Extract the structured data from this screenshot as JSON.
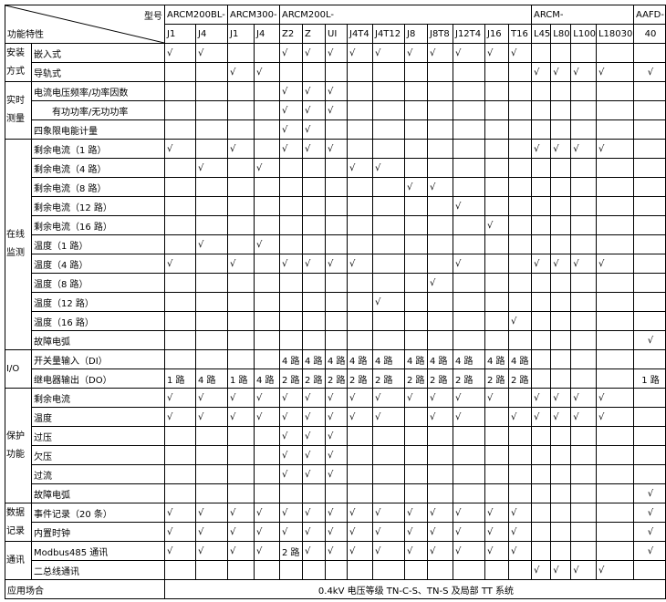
{
  "header": {
    "corner_top": "型号",
    "corner_bottom": "功能特性",
    "series": [
      {
        "name": "ARCM200BL-",
        "span": 2
      },
      {
        "name": "ARCM300-",
        "span": 2
      },
      {
        "name": "ARCM200L-",
        "span": 10
      },
      {
        "name": "ARCM-",
        "span": 4
      },
      {
        "name": "AAFD-",
        "span": 1
      }
    ],
    "models": [
      "J1",
      "J4",
      "J1",
      "J4",
      "Z2",
      "Z",
      "UI",
      "J4T4",
      "J4T12",
      "J8",
      "J8T8",
      "J12T4",
      "J16",
      "T16",
      "L45",
      "L80",
      "L100",
      "L18030",
      "40"
    ]
  },
  "groups": [
    {
      "label": "安装方式",
      "rows": [
        {
          "feature": "嵌入式",
          "cells": [
            "√",
            "√",
            "",
            "",
            "√",
            "√",
            "√",
            "√",
            "√",
            "√",
            "√",
            "√",
            "√",
            "√",
            "",
            "",
            "",
            "",
            ""
          ]
        },
        {
          "feature": "导轨式",
          "cells": [
            "",
            "",
            "√",
            "√",
            "",
            "",
            "",
            "",
            "",
            "",
            "",
            "",
            "",
            "",
            "√",
            "√",
            "√",
            "√",
            "√"
          ]
        }
      ]
    },
    {
      "label": "实时测量",
      "rows": [
        {
          "feature": "电流电压频率/功率因数",
          "cells": [
            "",
            "",
            "",
            "",
            "√",
            "√",
            "√",
            "",
            "",
            "",
            "",
            "",
            "",
            "",
            "",
            "",
            "",
            "",
            ""
          ]
        },
        {
          "feature": "有功功率/无功功率",
          "indent": true,
          "cells": [
            "",
            "",
            "",
            "",
            "√",
            "√",
            "√",
            "",
            "",
            "",
            "",
            "",
            "",
            "",
            "",
            "",
            "",
            "",
            ""
          ]
        },
        {
          "feature": "四象限电能计量",
          "cells": [
            "",
            "",
            "",
            "",
            "√",
            "√",
            "",
            "",
            "",
            "",
            "",
            "",
            "",
            "",
            "",
            "",
            "",
            "",
            ""
          ]
        }
      ]
    },
    {
      "label": "在线监测",
      "rows": [
        {
          "feature": "剩余电流（1 路）",
          "cells": [
            "√",
            "",
            "√",
            "",
            "√",
            "√",
            "√",
            "",
            "",
            "",
            "",
            "",
            "",
            "",
            "√",
            "√",
            "√",
            "√",
            ""
          ]
        },
        {
          "feature": "剩余电流（4 路）",
          "cells": [
            "",
            "√",
            "",
            "√",
            "",
            "",
            "",
            "√",
            "√",
            "",
            "",
            "",
            "",
            "",
            "",
            "",
            "",
            "",
            ""
          ]
        },
        {
          "feature": "剩余电流（8 路）",
          "cells": [
            "",
            "",
            "",
            "",
            "",
            "",
            "",
            "",
            "",
            "√",
            "√",
            "",
            "",
            "",
            "",
            "",
            "",
            "",
            ""
          ]
        },
        {
          "feature": "剩余电流（12 路）",
          "cells": [
            "",
            "",
            "",
            "",
            "",
            "",
            "",
            "",
            "",
            "",
            "",
            "√",
            "",
            "",
            "",
            "",
            "",
            "",
            ""
          ]
        },
        {
          "feature": "剩余电流（16 路）",
          "cells": [
            "",
            "",
            "",
            "",
            "",
            "",
            "",
            "",
            "",
            "",
            "",
            "",
            "√",
            "",
            "",
            "",
            "",
            "",
            ""
          ]
        },
        {
          "feature": "温度（1 路）",
          "cells": [
            "",
            "√",
            "",
            "√",
            "",
            "",
            "",
            "",
            "",
            "",
            "",
            "",
            "",
            "",
            "",
            "",
            "",
            "",
            ""
          ]
        },
        {
          "feature": "温度（4 路）",
          "cells": [
            "√",
            "",
            "√",
            "",
            "√",
            "√",
            "√",
            "√",
            "",
            "",
            "",
            "√",
            "",
            "",
            "√",
            "√",
            "√",
            "√",
            ""
          ]
        },
        {
          "feature": "温度（8 路）",
          "cells": [
            "",
            "",
            "",
            "",
            "",
            "",
            "",
            "",
            "",
            "",
            "√",
            "",
            "",
            "",
            "",
            "",
            "",
            "",
            ""
          ]
        },
        {
          "feature": "温度（12 路）",
          "cells": [
            "",
            "",
            "",
            "",
            "",
            "",
            "",
            "",
            "√",
            "",
            "",
            "",
            "",
            "",
            "",
            "",
            "",
            "",
            ""
          ]
        },
        {
          "feature": "温度（16 路）",
          "cells": [
            "",
            "",
            "",
            "",
            "",
            "",
            "",
            "",
            "",
            "",
            "",
            "",
            "",
            "√",
            "",
            "",
            "",
            "",
            ""
          ]
        },
        {
          "feature": "故障电弧",
          "cells": [
            "",
            "",
            "",
            "",
            "",
            "",
            "",
            "",
            "",
            "",
            "",
            "",
            "",
            "",
            "",
            "",
            "",
            "",
            "√"
          ]
        }
      ]
    },
    {
      "label": "I/O",
      "rows": [
        {
          "feature": "开关量输入（DI）",
          "cells": [
            "",
            "",
            "",
            "",
            "4 路",
            "4 路",
            "4 路",
            "4 路",
            "4 路",
            "4 路",
            "4 路",
            "4 路",
            "4 路",
            "4 路",
            "",
            "",
            "",
            "",
            ""
          ]
        },
        {
          "feature": "继电器输出（DO）",
          "cells": [
            "1 路",
            "4 路",
            "1 路",
            "4 路",
            "2 路",
            "2 路",
            "2 路",
            "2 路",
            "2 路",
            "2 路",
            "2 路",
            "2 路",
            "2 路",
            "2 路",
            "",
            "",
            "",
            "",
            "1 路"
          ]
        }
      ]
    },
    {
      "label": "保护功能",
      "rows": [
        {
          "feature": "剩余电流",
          "cells": [
            "√",
            "√",
            "√",
            "√",
            "√",
            "√",
            "√",
            "√",
            "√",
            "√",
            "√",
            "√",
            "√",
            "",
            "√",
            "√",
            "√",
            "√",
            ""
          ]
        },
        {
          "feature": "温度",
          "cells": [
            "√",
            "√",
            "√",
            "√",
            "√",
            "√",
            "√",
            "√",
            "√",
            "",
            "√",
            "√",
            "",
            "√",
            "√",
            "√",
            "√",
            "√",
            ""
          ]
        },
        {
          "feature": "过压",
          "cells": [
            "",
            "",
            "",
            "",
            "√",
            "√",
            "√",
            "",
            "",
            "",
            "",
            "",
            "",
            "",
            "",
            "",
            "",
            "",
            ""
          ]
        },
        {
          "feature": "欠压",
          "cells": [
            "",
            "",
            "",
            "",
            "√",
            "√",
            "√",
            "",
            "",
            "",
            "",
            "",
            "",
            "",
            "",
            "",
            "",
            "",
            ""
          ]
        },
        {
          "feature": "过流",
          "cells": [
            "",
            "",
            "",
            "",
            "√",
            "√",
            "√",
            "",
            "",
            "",
            "",
            "",
            "",
            "",
            "",
            "",
            "",
            "",
            ""
          ]
        },
        {
          "feature": "故障电弧",
          "cells": [
            "",
            "",
            "",
            "",
            "",
            "",
            "",
            "",
            "",
            "",
            "",
            "",
            "",
            "",
            "",
            "",
            "",
            "",
            "√"
          ]
        }
      ]
    },
    {
      "label": "数据记录",
      "rows": [
        {
          "feature": "事件记录（20 条）",
          "cells": [
            "√",
            "√",
            "√",
            "√",
            "√",
            "√",
            "√",
            "√",
            "√",
            "√",
            "√",
            "√",
            "√",
            "√",
            "",
            "",
            "",
            "",
            "√"
          ]
        },
        {
          "feature": "内置时钟",
          "cells": [
            "√",
            "√",
            "√",
            "√",
            "√",
            "√",
            "√",
            "√",
            "√",
            "√",
            "√",
            "√",
            "√",
            "√",
            "",
            "",
            "",
            "",
            "√"
          ]
        }
      ]
    },
    {
      "label": "通讯",
      "rows": [
        {
          "feature": "Modbus485 通讯",
          "cells": [
            "√",
            "√",
            "√",
            "√",
            "2 路",
            "√",
            "√",
            "√",
            "√",
            "√",
            "√",
            "√",
            "√",
            "√",
            "",
            "",
            "",
            "",
            "√"
          ]
        },
        {
          "feature": "二总线通讯",
          "cells": [
            "",
            "",
            "",
            "",
            "",
            "",
            "",
            "",
            "",
            "",
            "",
            "",
            "",
            "",
            "√",
            "√",
            "√",
            "√",
            ""
          ]
        }
      ]
    }
  ],
  "application": {
    "label": "应用场合",
    "value": "0.4kV 电压等级 TN-C-S、TN-S 及局部 TT 系统"
  }
}
